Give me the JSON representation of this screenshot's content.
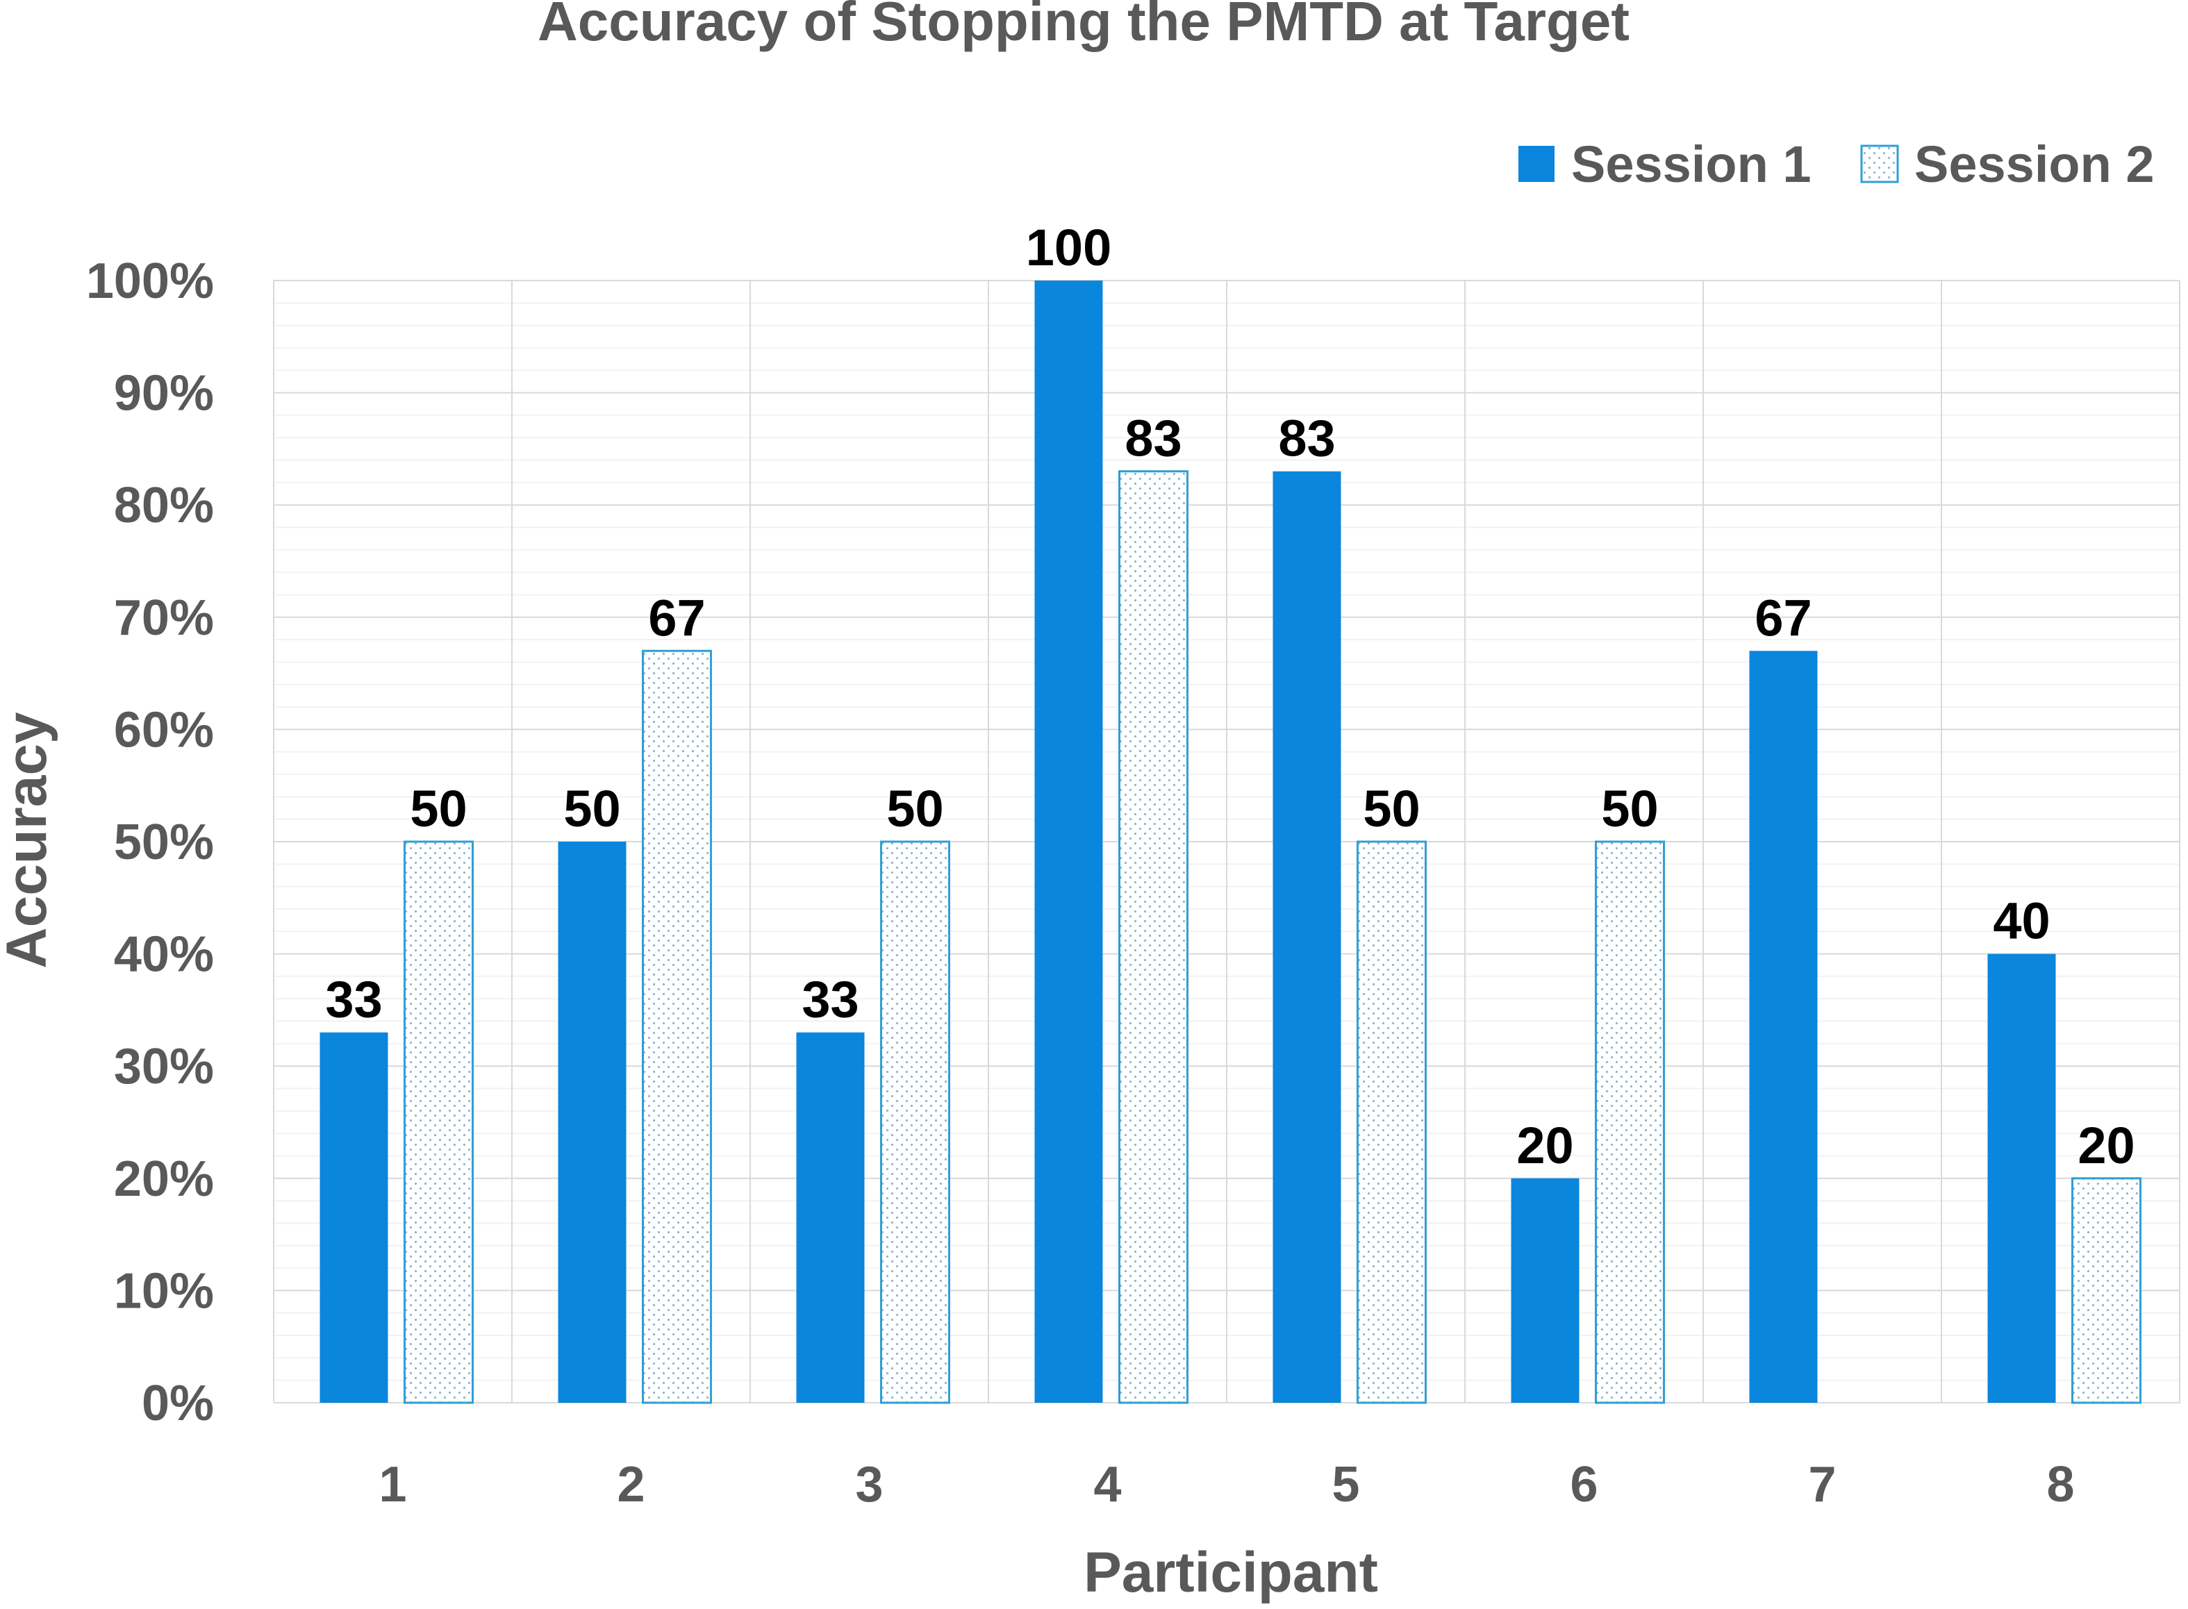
{
  "chart_data": {
    "type": "bar",
    "title": "Accuracy of Stopping the PMTD at Target",
    "xlabel": "Participant",
    "ylabel": "Accuracy",
    "categories": [
      "1",
      "2",
      "3",
      "4",
      "5",
      "6",
      "7",
      "8"
    ],
    "series": [
      {
        "name": "Session 1",
        "values": [
          33,
          50,
          33,
          100,
          83,
          20,
          67,
          40
        ],
        "color": "#0a86dd",
        "fill": "solid"
      },
      {
        "name": "Session 2",
        "values": [
          50,
          67,
          50,
          83,
          50,
          50,
          null,
          20
        ],
        "color": "#2e9fd8",
        "fill": "dotted"
      }
    ],
    "data_labels": [
      [
        "33",
        "50",
        "33",
        "100",
        "83",
        "20",
        "67",
        "40"
      ],
      [
        "50",
        "67",
        "50",
        "83",
        "50",
        "50",
        "",
        "20"
      ]
    ],
    "ylim": [
      0,
      100
    ],
    "y_ticks": [
      "0%",
      "10%",
      "20%",
      "30%",
      "40%",
      "50%",
      "60%",
      "70%",
      "80%",
      "90%",
      "100%"
    ],
    "grid": true,
    "legend_position": "top-right"
  }
}
